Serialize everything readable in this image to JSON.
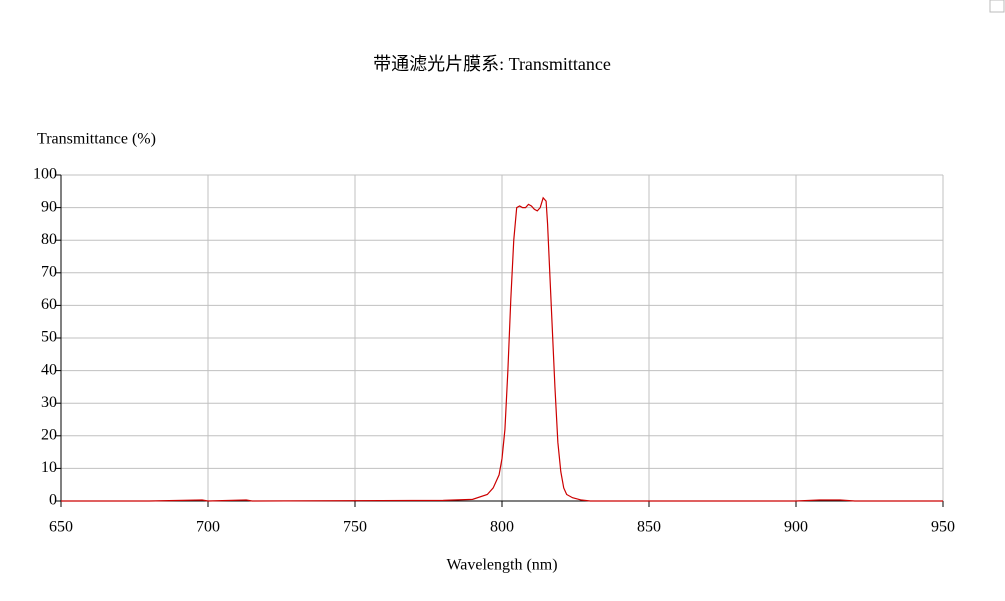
{
  "chart_data": {
    "type": "line",
    "title": "带通滤光片膜系: Transmittance",
    "y_label": "Transmittance (%)",
    "x_label": "Wavelength (nm)",
    "x": [
      650,
      680,
      698,
      700,
      713,
      715,
      780,
      790,
      795,
      797,
      799,
      800,
      801,
      802,
      803,
      804,
      805,
      806,
      807,
      808,
      809,
      810,
      811,
      812,
      813,
      814,
      815,
      815.5,
      816,
      817,
      818,
      819,
      820,
      821,
      822,
      824,
      827,
      830,
      900,
      908,
      915,
      920,
      950
    ],
    "values": [
      0,
      0,
      0.3,
      0,
      0.3,
      0,
      0.2,
      0.5,
      2,
      4,
      8,
      13,
      22,
      40,
      62,
      80,
      90,
      90.5,
      90,
      90,
      91,
      90.5,
      89.5,
      89,
      90,
      93,
      92,
      85,
      75,
      55,
      35,
      18,
      9,
      4,
      2,
      1,
      0.3,
      0,
      0,
      0.3,
      0.3,
      0,
      0
    ],
    "color": "#cc0000",
    "xlim": [
      650,
      950
    ],
    "xticks": [
      650,
      700,
      750,
      800,
      850,
      900,
      950
    ],
    "ylim": [
      0,
      100
    ],
    "yticks": [
      0,
      10,
      20,
      30,
      40,
      50,
      60,
      70,
      80,
      90,
      100
    ],
    "grid": true
  }
}
